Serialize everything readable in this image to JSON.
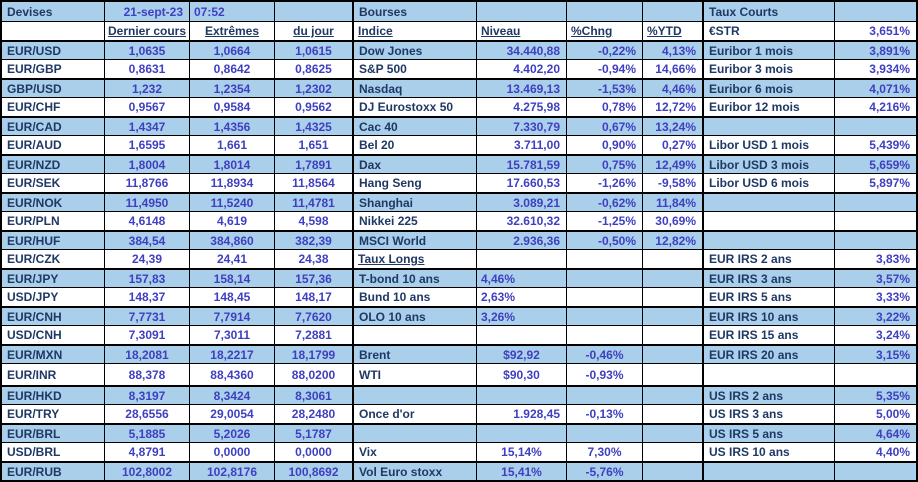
{
  "colors": {
    "band": "#a9cfeb",
    "label_text": "#1f3864",
    "value_text": "#3f3fc0",
    "grid_border": "#000000"
  },
  "table": {
    "rows": [
      {
        "cells": [
          {
            "t": "Devises",
            "s": "title"
          },
          {
            "t": "21-sept-23",
            "s": "r"
          },
          {
            "t": "07:52",
            "s": "l"
          },
          {
            "t": ""
          },
          {
            "t": "Bourses",
            "s": "title"
          },
          {
            "t": ""
          },
          {
            "t": ""
          },
          {
            "t": ""
          },
          {
            "t": "Taux Courts",
            "s": "title"
          },
          {
            "t": ""
          }
        ]
      },
      {
        "cells": [
          {
            "t": ""
          },
          {
            "t": "Dernier cours",
            "s": "headc"
          },
          {
            "t": "Extrêmes",
            "s": "headc"
          },
          {
            "t": "du jour",
            "s": "headc"
          },
          {
            "t": "Indice",
            "s": "headl"
          },
          {
            "t": "Niveau",
            "s": "headl"
          },
          {
            "t": "%Chng",
            "s": "headl"
          },
          {
            "t": "%YTD",
            "s": "headl"
          },
          {
            "t": "€STR",
            "s": "lbl"
          },
          {
            "t": "3,651%",
            "s": "r"
          }
        ]
      },
      {
        "cells": [
          {
            "t": "EUR/USD",
            "s": "lbl"
          },
          {
            "t": "1,0635",
            "s": "c"
          },
          {
            "t": "1,0664",
            "s": "c"
          },
          {
            "t": "1,0615",
            "s": "c"
          },
          {
            "t": "Dow Jones",
            "s": "lbl"
          },
          {
            "t": "34.440,88",
            "s": "r"
          },
          {
            "t": "-0,22%",
            "s": "r"
          },
          {
            "t": "4,13%",
            "s": "r"
          },
          {
            "t": "Euribor 1 mois",
            "s": "lbl"
          },
          {
            "t": "3,891%",
            "s": "r"
          }
        ]
      },
      {
        "cells": [
          {
            "t": "EUR/GBP",
            "s": "lbl"
          },
          {
            "t": "0,8631",
            "s": "c"
          },
          {
            "t": "0,8642",
            "s": "c"
          },
          {
            "t": "0,8625",
            "s": "c"
          },
          {
            "t": "S&P 500",
            "s": "lbl"
          },
          {
            "t": "4.402,20",
            "s": "r"
          },
          {
            "t": "-0,94%",
            "s": "r"
          },
          {
            "t": "14,66%",
            "s": "r"
          },
          {
            "t": "Euribor 3 mois",
            "s": "lbl"
          },
          {
            "t": "3,934%",
            "s": "r"
          }
        ]
      },
      {
        "cells": [
          {
            "t": "GBP/USD",
            "s": "lbl"
          },
          {
            "t": "1,232",
            "s": "c"
          },
          {
            "t": "1,2354",
            "s": "c"
          },
          {
            "t": "1,2302",
            "s": "c"
          },
          {
            "t": "Nasdaq",
            "s": "lbl"
          },
          {
            "t": "13.469,13",
            "s": "r"
          },
          {
            "t": "-1,53%",
            "s": "r"
          },
          {
            "t": "4,46%",
            "s": "r"
          },
          {
            "t": "Euribor 6 mois",
            "s": "lbl"
          },
          {
            "t": "4,071%",
            "s": "r"
          }
        ]
      },
      {
        "cells": [
          {
            "t": "EUR/CHF",
            "s": "lbl"
          },
          {
            "t": "0,9567",
            "s": "c"
          },
          {
            "t": "0,9584",
            "s": "c"
          },
          {
            "t": "0,9562",
            "s": "c"
          },
          {
            "t": "DJ Eurostoxx 50",
            "s": "lbl"
          },
          {
            "t": "4.275,98",
            "s": "r"
          },
          {
            "t": "0,78%",
            "s": "r"
          },
          {
            "t": "12,72%",
            "s": "r"
          },
          {
            "t": "Euribor 12 mois",
            "s": "lbl"
          },
          {
            "t": "4,216%",
            "s": "r"
          }
        ]
      },
      {
        "cells": [
          {
            "t": "EUR/CAD",
            "s": "lbl"
          },
          {
            "t": "1,4347",
            "s": "c"
          },
          {
            "t": "1,4356",
            "s": "c"
          },
          {
            "t": "1,4325",
            "s": "c"
          },
          {
            "t": "Cac 40",
            "s": "lbl"
          },
          {
            "t": "7.330,79",
            "s": "r"
          },
          {
            "t": "0,67%",
            "s": "r"
          },
          {
            "t": "13,24%",
            "s": "r"
          },
          {
            "t": ""
          },
          {
            "t": ""
          }
        ]
      },
      {
        "cells": [
          {
            "t": "EUR/AUD",
            "s": "lbl"
          },
          {
            "t": "1,6595",
            "s": "c"
          },
          {
            "t": "1,661",
            "s": "c"
          },
          {
            "t": "1,651",
            "s": "c"
          },
          {
            "t": "Bel 20",
            "s": "lbl"
          },
          {
            "t": "3.711,00",
            "s": "r"
          },
          {
            "t": "0,90%",
            "s": "r"
          },
          {
            "t": "0,27%",
            "s": "r"
          },
          {
            "t": "Libor USD 1 mois",
            "s": "lbl"
          },
          {
            "t": "5,439%",
            "s": "r"
          }
        ]
      },
      {
        "cells": [
          {
            "t": "EUR/NZD",
            "s": "lbl"
          },
          {
            "t": "1,8004",
            "s": "c"
          },
          {
            "t": "1,8014",
            "s": "c"
          },
          {
            "t": "1,7891",
            "s": "c"
          },
          {
            "t": "Dax",
            "s": "lbl"
          },
          {
            "t": "15.781,59",
            "s": "r"
          },
          {
            "t": "0,75%",
            "s": "r"
          },
          {
            "t": "12,49%",
            "s": "r"
          },
          {
            "t": "Libor USD 3 mois",
            "s": "lbl"
          },
          {
            "t": "5,659%",
            "s": "r"
          }
        ]
      },
      {
        "cells": [
          {
            "t": "EUR/SEK",
            "s": "lbl"
          },
          {
            "t": "11,8766",
            "s": "c"
          },
          {
            "t": "11,8934",
            "s": "c"
          },
          {
            "t": "11,8564",
            "s": "c"
          },
          {
            "t": "Hang Seng",
            "s": "lbl"
          },
          {
            "t": "17.660,53",
            "s": "r"
          },
          {
            "t": "-1,26%",
            "s": "r"
          },
          {
            "t": "-9,58%",
            "s": "r"
          },
          {
            "t": "Libor USD 6 mois",
            "s": "lbl"
          },
          {
            "t": "5,897%",
            "s": "r"
          }
        ]
      },
      {
        "cells": [
          {
            "t": "EUR/NOK",
            "s": "lbl"
          },
          {
            "t": "11,4950",
            "s": "c"
          },
          {
            "t": "11,5240",
            "s": "c"
          },
          {
            "t": "11,4781",
            "s": "c"
          },
          {
            "t": "Shanghai",
            "s": "lbl"
          },
          {
            "t": "3.089,21",
            "s": "r"
          },
          {
            "t": "-0,62%",
            "s": "r"
          },
          {
            "t": "11,84%",
            "s": "r"
          },
          {
            "t": ""
          },
          {
            "t": ""
          }
        ]
      },
      {
        "cells": [
          {
            "t": "EUR/PLN",
            "s": "lbl"
          },
          {
            "t": "4,6148",
            "s": "c"
          },
          {
            "t": "4,619",
            "s": "c"
          },
          {
            "t": "4,598",
            "s": "c"
          },
          {
            "t": "Nikkei 225",
            "s": "lbl"
          },
          {
            "t": "32.610,32",
            "s": "r"
          },
          {
            "t": "-1,25%",
            "s": "r"
          },
          {
            "t": "30,69%",
            "s": "r"
          },
          {
            "t": ""
          },
          {
            "t": ""
          }
        ]
      },
      {
        "cells": [
          {
            "t": "EUR/HUF",
            "s": "lbl"
          },
          {
            "t": "384,54",
            "s": "c"
          },
          {
            "t": "384,860",
            "s": "c"
          },
          {
            "t": "382,39",
            "s": "c"
          },
          {
            "t": "MSCI World",
            "s": "lbl"
          },
          {
            "t": "2.936,36",
            "s": "r"
          },
          {
            "t": "-0,50%",
            "s": "r"
          },
          {
            "t": "12,82%",
            "s": "r"
          },
          {
            "t": ""
          },
          {
            "t": ""
          }
        ]
      },
      {
        "cells": [
          {
            "t": "EUR/CZK",
            "s": "lbl"
          },
          {
            "t": "24,39",
            "s": "c"
          },
          {
            "t": "24,41",
            "s": "c"
          },
          {
            "t": "24,38",
            "s": "c"
          },
          {
            "t": "Taux Longs",
            "s": "headl"
          },
          {
            "t": ""
          },
          {
            "t": ""
          },
          {
            "t": ""
          },
          {
            "t": "EUR IRS 2 ans",
            "s": "lbl"
          },
          {
            "t": "3,83%",
            "s": "r"
          }
        ]
      },
      {
        "cells": [
          {
            "t": "EUR/JPY",
            "s": "lbl"
          },
          {
            "t": "157,83",
            "s": "c"
          },
          {
            "t": "158,14",
            "s": "c"
          },
          {
            "t": "157,36",
            "s": "c"
          },
          {
            "t": "T-bond 10 ans",
            "s": "lbl"
          },
          {
            "t": "4,46%",
            "s": "l"
          },
          {
            "t": ""
          },
          {
            "t": ""
          },
          {
            "t": "EUR IRS 3 ans",
            "s": "lbl"
          },
          {
            "t": "3,57%",
            "s": "r"
          }
        ]
      },
      {
        "cells": [
          {
            "t": "USD/JPY",
            "s": "lbl"
          },
          {
            "t": "148,37",
            "s": "c"
          },
          {
            "t": "148,45",
            "s": "c"
          },
          {
            "t": "148,17",
            "s": "c"
          },
          {
            "t": "Bund 10 ans",
            "s": "lbl"
          },
          {
            "t": "2,63%",
            "s": "l"
          },
          {
            "t": ""
          },
          {
            "t": ""
          },
          {
            "t": "EUR IRS 5 ans",
            "s": "lbl"
          },
          {
            "t": "3,33%",
            "s": "r"
          }
        ]
      },
      {
        "cells": [
          {
            "t": "EUR/CNH",
            "s": "lbl"
          },
          {
            "t": "7,7731",
            "s": "c"
          },
          {
            "t": "7,7914",
            "s": "c"
          },
          {
            "t": "7,7620",
            "s": "c"
          },
          {
            "t": "OLO 10 ans",
            "s": "lbl"
          },
          {
            "t": "3,26%",
            "s": "l"
          },
          {
            "t": ""
          },
          {
            "t": ""
          },
          {
            "t": "EUR IRS 10 ans",
            "s": "lbl"
          },
          {
            "t": "3,22%",
            "s": "r"
          }
        ]
      },
      {
        "cells": [
          {
            "t": "USD/CNH",
            "s": "lbl"
          },
          {
            "t": "7,3091",
            "s": "c"
          },
          {
            "t": "7,3011",
            "s": "c"
          },
          {
            "t": "7,2881",
            "s": "c"
          },
          {
            "t": ""
          },
          {
            "t": ""
          },
          {
            "t": ""
          },
          {
            "t": ""
          },
          {
            "t": "EUR IRS 15 ans",
            "s": "lbl"
          },
          {
            "t": "3,24%",
            "s": "r"
          }
        ]
      },
      {
        "cells": [
          {
            "t": "EUR/MXN",
            "s": "lbl"
          },
          {
            "t": "18,2081",
            "s": "c"
          },
          {
            "t": "18,2217",
            "s": "c"
          },
          {
            "t": "18,1799",
            "s": "c"
          },
          {
            "t": "Brent",
            "s": "lbl"
          },
          {
            "t": "$92,92",
            "s": "c"
          },
          {
            "t": "-0,46%",
            "s": "c"
          },
          {
            "t": ""
          },
          {
            "t": "EUR IRS 20 ans",
            "s": "lbl"
          },
          {
            "t": "3,15%",
            "s": "r"
          }
        ]
      },
      {
        "tall": true,
        "cells": [
          {
            "t": "EUR/INR",
            "s": "lbl"
          },
          {
            "t": "88,378",
            "s": "c"
          },
          {
            "t": "88,4360",
            "s": "c"
          },
          {
            "t": "88,0200",
            "s": "c"
          },
          {
            "t": "WTI",
            "s": "lbl"
          },
          {
            "t": "$90,30",
            "s": "c"
          },
          {
            "t": "-0,93%",
            "s": "c"
          },
          {
            "t": ""
          },
          {
            "t": ""
          },
          {
            "t": ""
          }
        ]
      },
      {
        "cells": [
          {
            "t": "EUR/HKD",
            "s": "lbl"
          },
          {
            "t": "8,3197",
            "s": "c"
          },
          {
            "t": "8,3424",
            "s": "c"
          },
          {
            "t": "8,3061",
            "s": "c"
          },
          {
            "t": ""
          },
          {
            "t": ""
          },
          {
            "t": ""
          },
          {
            "t": ""
          },
          {
            "t": "US IRS 2 ans",
            "s": "lbl"
          },
          {
            "t": "5,35%",
            "s": "r"
          }
        ]
      },
      {
        "cells": [
          {
            "t": "EUR/TRY",
            "s": "lbl"
          },
          {
            "t": "28,6556",
            "s": "c"
          },
          {
            "t": "29,0054",
            "s": "c"
          },
          {
            "t": "28,2480",
            "s": "c"
          },
          {
            "t": "Once d'or",
            "s": "lbl"
          },
          {
            "t": "1.928,45",
            "s": "r"
          },
          {
            "t": "-0,13%",
            "s": "c"
          },
          {
            "t": ""
          },
          {
            "t": "US IRS 3 ans",
            "s": "lbl"
          },
          {
            "t": "5,00%",
            "s": "r"
          }
        ]
      },
      {
        "cells": [
          {
            "t": "EUR/BRL",
            "s": "lbl"
          },
          {
            "t": "5,1885",
            "s": "c"
          },
          {
            "t": "5,2026",
            "s": "c"
          },
          {
            "t": "5,1787",
            "s": "c"
          },
          {
            "t": ""
          },
          {
            "t": ""
          },
          {
            "t": ""
          },
          {
            "t": ""
          },
          {
            "t": "US IRS 5 ans",
            "s": "lbl"
          },
          {
            "t": "4,64%",
            "s": "r"
          }
        ]
      },
      {
        "cells": [
          {
            "t": "USD/BRL",
            "s": "lbl"
          },
          {
            "t": "4,8791",
            "s": "c"
          },
          {
            "t": "0,0000",
            "s": "c"
          },
          {
            "t": "0,0000",
            "s": "c"
          },
          {
            "t": "Vix",
            "s": "lbl"
          },
          {
            "t": "15,14%",
            "s": "c"
          },
          {
            "t": "7,30%",
            "s": "c"
          },
          {
            "t": ""
          },
          {
            "t": "US IRS 10 ans",
            "s": "lbl"
          },
          {
            "t": "4,40%",
            "s": "r"
          }
        ]
      },
      {
        "cells": [
          {
            "t": "EUR/RUB",
            "s": "lbl"
          },
          {
            "t": "102,8002",
            "s": "c"
          },
          {
            "t": "102,8176",
            "s": "c"
          },
          {
            "t": "100,8692",
            "s": "c"
          },
          {
            "t": "Vol Euro stoxx",
            "s": "lbl"
          },
          {
            "t": "15,41%",
            "s": "c"
          },
          {
            "t": "-5,76%",
            "s": "c"
          },
          {
            "t": ""
          },
          {
            "t": ""
          },
          {
            "t": ""
          }
        ]
      }
    ]
  }
}
